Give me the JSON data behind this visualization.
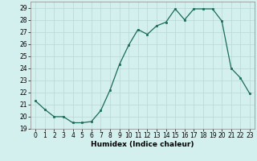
{
  "x": [
    0,
    1,
    2,
    3,
    4,
    5,
    6,
    7,
    8,
    9,
    10,
    11,
    12,
    13,
    14,
    15,
    16,
    17,
    18,
    19,
    20,
    21,
    22,
    23
  ],
  "y": [
    21.3,
    20.6,
    20.0,
    20.0,
    19.5,
    19.5,
    19.6,
    20.5,
    22.2,
    24.3,
    25.9,
    27.2,
    26.8,
    27.5,
    27.8,
    28.9,
    28.0,
    28.9,
    28.9,
    28.9,
    27.9,
    24.0,
    23.2,
    21.9
  ],
  "line_color": "#1a6b5a",
  "marker": "s",
  "marker_size": 1.8,
  "bg_color": "#d4f0ee",
  "grid_color": "#b8d8d5",
  "xlabel": "Humidex (Indice chaleur)",
  "xlim": [
    -0.5,
    23.5
  ],
  "ylim": [
    19.0,
    29.5
  ],
  "yticks": [
    19,
    20,
    21,
    22,
    23,
    24,
    25,
    26,
    27,
    28,
    29
  ],
  "xticks": [
    0,
    1,
    2,
    3,
    4,
    5,
    6,
    7,
    8,
    9,
    10,
    11,
    12,
    13,
    14,
    15,
    16,
    17,
    18,
    19,
    20,
    21,
    22,
    23
  ],
  "xlabel_fontsize": 6.5,
  "tick_fontsize": 5.5,
  "line_width": 0.9
}
